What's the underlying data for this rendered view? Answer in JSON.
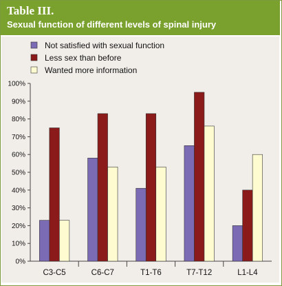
{
  "chart_data": {
    "type": "bar",
    "title": "Table III.",
    "subtitle": "Sexual function of different levels of spinal injury",
    "categories": [
      "C3-C5",
      "C6-C7",
      "T1-T6",
      "T7-T12",
      "L1-L4"
    ],
    "series": [
      {
        "name": "Not satisfied with sexual function",
        "color": "#7b6bb5",
        "values": [
          23,
          58,
          41,
          65,
          20
        ]
      },
      {
        "name": "Less sex than before",
        "color": "#8b1a1a",
        "values": [
          75,
          83,
          83,
          95,
          40
        ]
      },
      {
        "name": "Wanted more information",
        "color": "#fdfbcf",
        "values": [
          23,
          53,
          53,
          76,
          60
        ]
      }
    ],
    "yticks": [
      "0%",
      "10%",
      "20%",
      "30%",
      "40%",
      "50%",
      "60%",
      "70%",
      "80%",
      "90%",
      "100%"
    ],
    "ylim": [
      0,
      100
    ],
    "xlabel": "",
    "ylabel": "",
    "grid": false,
    "legend": "top-left"
  }
}
